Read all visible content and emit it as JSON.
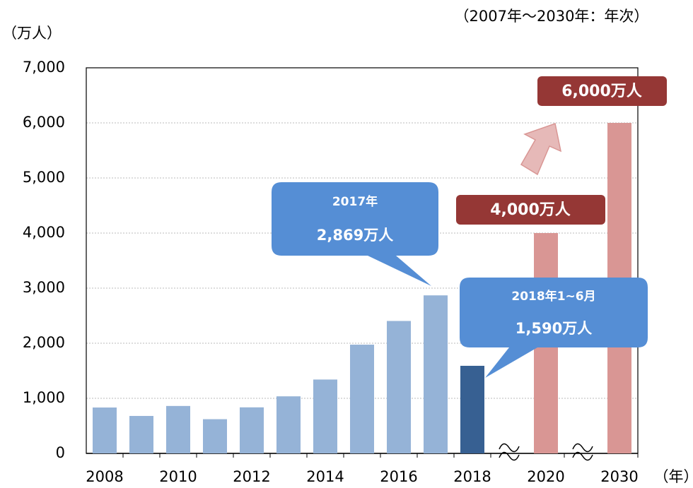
{
  "chart_data": {
    "type": "bar",
    "subtitle": "（2007年～2030年：年次）",
    "y_label": "（万人）",
    "x_label": "（年）",
    "categories": [
      "2008",
      null,
      "2010",
      null,
      "2012",
      null,
      "2014",
      null,
      "2016",
      null,
      "2018",
      "2020",
      "2030"
    ],
    "values": [
      833,
      680,
      861,
      621,
      836,
      1036,
      1341,
      1974,
      2404,
      2869,
      1590,
      4000,
      6000
    ],
    "colors": [
      "#95b3d7",
      "#95b3d7",
      "#95b3d7",
      "#95b3d7",
      "#95b3d7",
      "#95b3d7",
      "#95b3d7",
      "#95b3d7",
      "#95b3d7",
      "#95b3d7",
      "#376092",
      "#d99694",
      "#d99694"
    ],
    "value_labels": [
      null,
      null,
      null,
      null,
      null,
      null,
      null,
      null,
      null,
      "2,869万人",
      "1,590万人",
      "4,000万人",
      "6,000万人"
    ],
    "annotations": [
      "2017年",
      "2018年1~6月"
    ],
    "ylim": [
      0,
      7000
    ],
    "yticks": [
      0,
      {
        "value": 1000,
        "label": "1,000"
      },
      {
        "value": 2000,
        "label": "2,000"
      },
      {
        "value": 3000,
        "label": "3,000"
      },
      {
        "value": 4000,
        "label": "4,000"
      },
      {
        "value": 5000,
        "label": "5,000"
      },
      {
        "value": 6000,
        "label": "6,000"
      },
      {
        "value": 7000,
        "label": "7,000"
      }
    ],
    "grid": true
  }
}
